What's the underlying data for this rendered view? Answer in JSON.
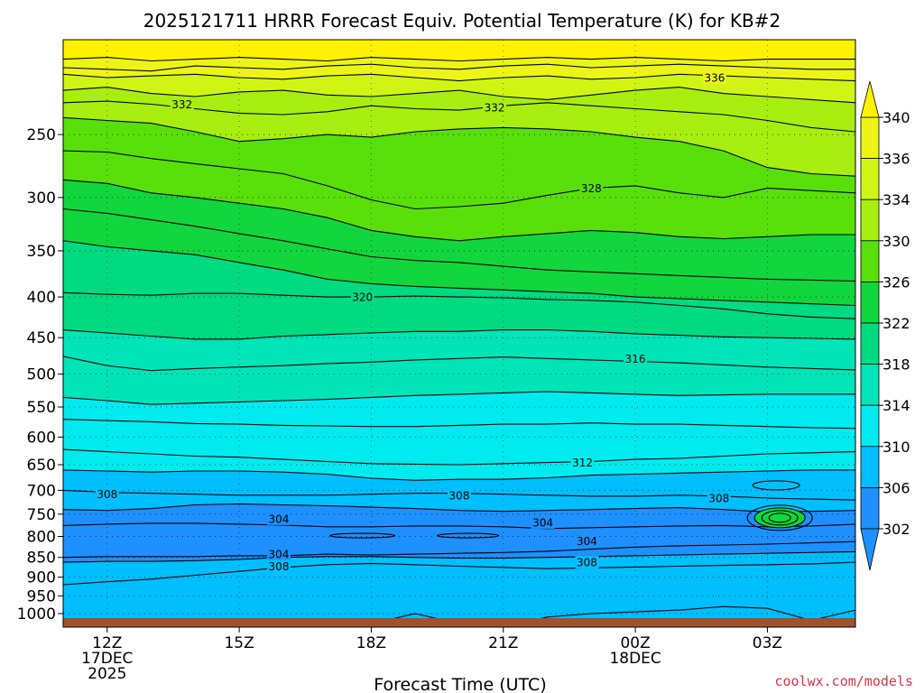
{
  "chart_data": {
    "type": "contour",
    "title": "2025121711 HRRR Forecast Equiv. Potential Temperature (K) for KB#2",
    "xlabel": "Forecast Time (UTC)",
    "credit": "coolwx.com/models",
    "x_ticks": [
      {
        "hour": 0,
        "line1": "12Z",
        "line2": "17DEC",
        "line3": "2025"
      },
      {
        "hour": 3,
        "line1": "15Z"
      },
      {
        "hour": 6,
        "line1": "18Z"
      },
      {
        "hour": 9,
        "line1": "21Z"
      },
      {
        "hour": 12,
        "line1": "00Z",
        "line2": "18DEC"
      },
      {
        "hour": 15,
        "line1": "03Z"
      }
    ],
    "xlim": [
      -1,
      17
    ],
    "y_ticks": [
      250,
      300,
      350,
      400,
      450,
      500,
      550,
      600,
      650,
      700,
      750,
      800,
      850,
      900,
      950,
      1000
    ],
    "ylim": [
      1040,
      190
    ],
    "y_scale": "log-pressure",
    "colorbar": {
      "ticks": [
        302,
        306,
        310,
        314,
        318,
        322,
        326,
        330,
        334,
        336,
        340
      ],
      "levels": [
        298,
        302,
        306,
        310,
        314,
        318,
        322,
        326,
        330,
        334,
        336,
        340,
        344
      ],
      "colors": [
        "#1e90ff",
        "#1e90ff",
        "#00bfff",
        "#00ebf0",
        "#00e5b8",
        "#00db82",
        "#12d63d",
        "#59e00b",
        "#a8ee10",
        "#d0f514",
        "#ecf516",
        "#fff200"
      ]
    },
    "contours": [
      {
        "value": 340,
        "p": [
          201,
          200,
          202,
          201,
          200,
          201,
          202,
          200,
          201,
          202,
          201,
          200,
          201,
          200,
          201,
          202,
          201,
          201,
          201
        ]
      },
      {
        "value": 338,
        "p": [
          206,
          207,
          208,
          205,
          206,
          207,
          205,
          204,
          206,
          207,
          205,
          204,
          206,
          205,
          204,
          205,
          206,
          207,
          207
        ]
      },
      {
        "value": 336,
        "p": [
          210,
          212,
          211,
          210,
          212,
          213,
          211,
          210,
          212,
          214,
          212,
          211,
          213,
          212,
          210,
          211,
          212,
          213,
          214
        ]
      },
      {
        "value": 334,
        "p": [
          220,
          218,
          222,
          224,
          221,
          220,
          223,
          224,
          222,
          220,
          224,
          226,
          223,
          220,
          218,
          222,
          224,
          226,
          228
        ]
      },
      {
        "value": 332,
        "p": [
          228,
          227,
          229,
          232,
          235,
          236,
          234,
          230,
          232,
          233,
          230,
          228,
          230,
          232,
          234,
          236,
          240,
          245,
          248
        ]
      },
      {
        "value": 330,
        "p": [
          238,
          240,
          242,
          248,
          255,
          253,
          250,
          252,
          248,
          246,
          245,
          246,
          248,
          252,
          255,
          262,
          275,
          280,
          282
        ]
      },
      {
        "value": 328,
        "p": [
          262,
          263,
          268,
          272,
          276,
          280,
          290,
          302,
          310,
          308,
          305,
          298,
          292,
          290,
          296,
          300,
          292,
          294,
          296
        ]
      },
      {
        "value": 326,
        "p": [
          285,
          288,
          296,
          300,
          305,
          310,
          318,
          330,
          336,
          340,
          336,
          333,
          330,
          332,
          336,
          338,
          336,
          334,
          334
        ]
      },
      {
        "value": 324,
        "p": [
          310,
          314,
          320,
          326,
          333,
          340,
          348,
          356,
          360,
          362,
          366,
          370,
          372,
          374,
          376,
          378,
          380,
          381,
          382
        ]
      },
      {
        "value": 322,
        "p": [
          340,
          346,
          350,
          354,
          362,
          370,
          380,
          385,
          388,
          390,
          392,
          394,
          396,
          400,
          402,
          404,
          406,
          408,
          410
        ]
      },
      {
        "value": 320,
        "p": [
          395,
          397,
          398,
          396,
          396,
          398,
          400,
          400,
          399,
          400,
          401,
          403,
          404,
          406,
          410,
          414,
          420,
          424,
          426
        ]
      },
      {
        "value": 318,
        "p": [
          440,
          444,
          448,
          452,
          452,
          448,
          446,
          444,
          442,
          442,
          440,
          440,
          442,
          445,
          447,
          449,
          450,
          451,
          452
        ]
      },
      {
        "value": 316,
        "p": [
          475,
          488,
          495,
          492,
          490,
          488,
          485,
          483,
          480,
          478,
          476,
          478,
          480,
          482,
          484,
          487,
          490,
          492,
          494
        ]
      },
      {
        "value": 314,
        "p": [
          535,
          540,
          546,
          544,
          542,
          540,
          538,
          535,
          532,
          530,
          528,
          526,
          528,
          530,
          532,
          531,
          530,
          530,
          530
        ]
      },
      {
        "value": 313,
        "p": [
          570,
          572,
          574,
          577,
          578,
          580,
          581,
          582,
          582,
          580,
          578,
          578,
          576,
          578,
          578,
          580,
          582,
          584,
          585
        ]
      },
      {
        "value": 312,
        "p": [
          622,
          626,
          630,
          634,
          636,
          640,
          644,
          648,
          649,
          650,
          648,
          646,
          644,
          640,
          638,
          634,
          630,
          628,
          626
        ]
      },
      {
        "value": 310,
        "p": [
          660,
          662,
          664,
          662,
          662,
          664,
          668,
          676,
          680,
          678,
          678,
          675,
          670,
          668,
          666,
          664,
          662,
          660,
          660
        ]
      },
      {
        "value": 308,
        "p": [
          700,
          704,
          706,
          708,
          710,
          710,
          710,
          708,
          706,
          706,
          708,
          710,
          712,
          712,
          710,
          712,
          716,
          718,
          720
        ]
      },
      {
        "value": 306,
        "p": [
          740,
          742,
          738,
          730,
          728,
          730,
          732,
          735,
          738,
          742,
          744,
          742,
          740,
          738,
          736,
          740,
          745,
          744,
          742
        ]
      },
      {
        "value": 304,
        "p": [
          775,
          772,
          770,
          770,
          772,
          774,
          778,
          778,
          776,
          776,
          778,
          782,
          780,
          778,
          776,
          775,
          778,
          776,
          772
        ]
      },
      {
        "value": 304.5,
        "p": [
          850,
          848,
          848,
          848,
          846,
          846,
          842,
          844,
          842,
          840,
          838,
          835,
          830,
          825,
          822,
          820,
          818,
          815,
          812
        ]
      },
      {
        "value": 306.5,
        "p": [
          862,
          860,
          860,
          858,
          855,
          850,
          848,
          848,
          850,
          852,
          852,
          850,
          848,
          846,
          844,
          842,
          840,
          838,
          836
        ]
      },
      {
        "value": 308.5,
        "p": [
          920,
          912,
          905,
          895,
          885,
          875,
          868,
          865,
          868,
          872,
          875,
          878,
          876,
          874,
          872,
          870,
          868,
          866,
          862
        ]
      },
      {
        "value": 310.5,
        "p": [
          1040,
          1040,
          1040,
          1040,
          1040,
          1040,
          1040,
          1030,
          1000,
          1030,
          1040,
          1010,
          1000,
          995,
          990,
          980,
          985,
          1020,
          990
        ]
      }
    ],
    "contour_labels": [
      {
        "text": "336",
        "hour": 13.8,
        "p": 212
      },
      {
        "text": "332",
        "hour": 1.7,
        "p": 229
      },
      {
        "text": "332",
        "hour": 8.8,
        "p": 231
      },
      {
        "text": "328",
        "hour": 11.0,
        "p": 292
      },
      {
        "text": "320",
        "hour": 5.8,
        "p": 400
      },
      {
        "text": "316",
        "hour": 12.0,
        "p": 478
      },
      {
        "text": "312",
        "hour": 10.8,
        "p": 646
      },
      {
        "text": "308",
        "hour": 0.0,
        "p": 708
      },
      {
        "text": "308",
        "hour": 8.0,
        "p": 710
      },
      {
        "text": "308",
        "hour": 13.9,
        "p": 716
      },
      {
        "text": "304",
        "hour": 3.9,
        "p": 760
      },
      {
        "text": "304",
        "hour": 9.9,
        "p": 768
      },
      {
        "text": "304",
        "hour": 10.9,
        "p": 810
      },
      {
        "text": "304",
        "hour": 3.9,
        "p": 842
      },
      {
        "text": "308",
        "hour": 3.9,
        "p": 872
      },
      {
        "text": "308",
        "hour": 10.9,
        "p": 862
      }
    ]
  }
}
